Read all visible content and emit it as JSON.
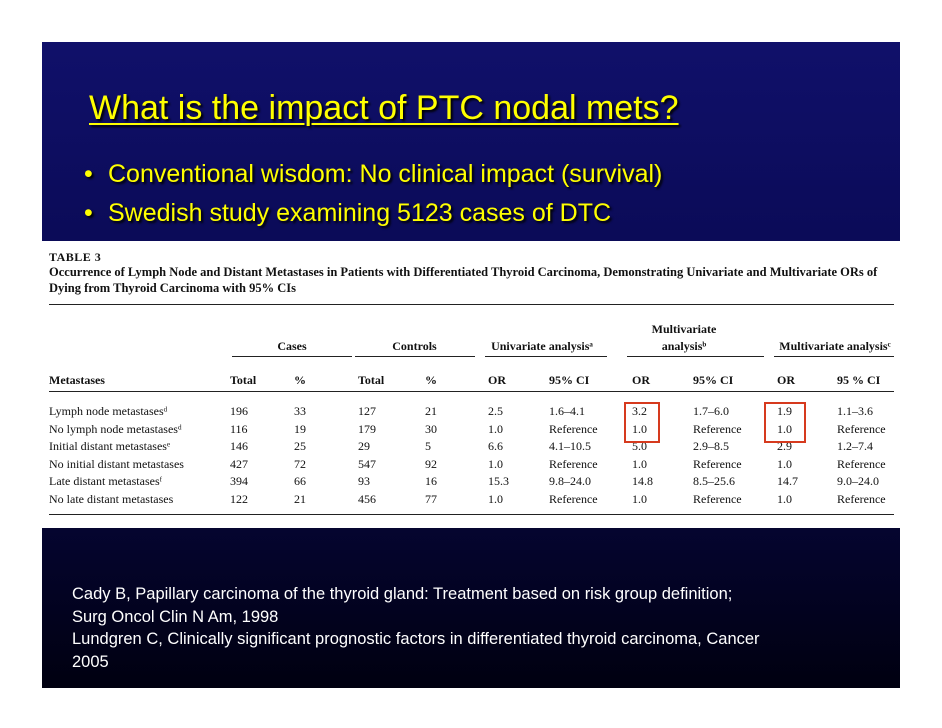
{
  "slide": {
    "title": "What is the impact of PTC nodal mets?",
    "bullet_symbol": "•",
    "bullets": [
      "Conventional wisdom: No clinical impact (survival)",
      "Swedish study examining 5123 cases of DTC"
    ]
  },
  "table": {
    "label": "TABLE 3",
    "caption": "Occurrence of Lymph Node and Distant Metastases in Patients with Differentiated Thyroid Carcinoma, Demonstrating Univariate and Multivariate ORs of Dying from Thyroid Carcinoma with 95% CIs",
    "groups": {
      "cases": "Cases",
      "controls": "Controls",
      "univariate": "Univariate analysisᵃ",
      "multi1_line1": "Multivariate",
      "multi1_line2": "analysisᵇ",
      "multi2": "Multivariate analysisᶜ"
    },
    "columns": [
      "Metastases",
      "Total",
      "%",
      "Total",
      "%",
      "OR",
      "95% CI",
      "OR",
      "95% CI",
      "OR",
      "95 % CI"
    ],
    "rows": [
      [
        "Lymph node metastasesᵈ",
        "196",
        "33",
        "127",
        "21",
        "2.5",
        "1.6–4.1",
        "3.2",
        "1.7–6.0",
        "1.9",
        "1.1–3.6"
      ],
      [
        "No lymph node metastasesᵈ",
        "116",
        "19",
        "179",
        "30",
        "1.0",
        "Reference",
        "1.0",
        "Reference",
        "1.0",
        "Reference"
      ],
      [
        "Initial distant metastasesᵉ",
        "146",
        "25",
        "29",
        "5",
        "6.6",
        "4.1–10.5",
        "5.0",
        "2.9–8.5",
        "2.9",
        "1.2–7.4"
      ],
      [
        "No initial distant metastases",
        "427",
        "72",
        "547",
        "92",
        "1.0",
        "Reference",
        "1.0",
        "Reference",
        "1.0",
        "Reference"
      ],
      [
        "Late distant metastasesᶠ",
        "394",
        "66",
        "93",
        "16",
        "15.3",
        "9.8–24.0",
        "14.8",
        "8.5–25.6",
        "14.7",
        "9.0–24.0"
      ],
      [
        "No late distant metastases",
        "122",
        "21",
        "456",
        "77",
        "1.0",
        "Reference",
        "1.0",
        "Reference",
        "1.0",
        "Reference"
      ]
    ]
  },
  "citations": [
    "Cady B, Papillary carcinoma of the thyroid gland: Treatment based on risk group definition;",
    "Surg Oncol Clin N Am, 1998",
    "Lundgren C, Clinically significant prognostic factors in differentiated thyroid carcinoma, Cancer",
    "2005"
  ],
  "colors": {
    "title_text": "#ffff00",
    "highlight_box": "#d63a1e",
    "slide_background": "#0a0a55"
  }
}
